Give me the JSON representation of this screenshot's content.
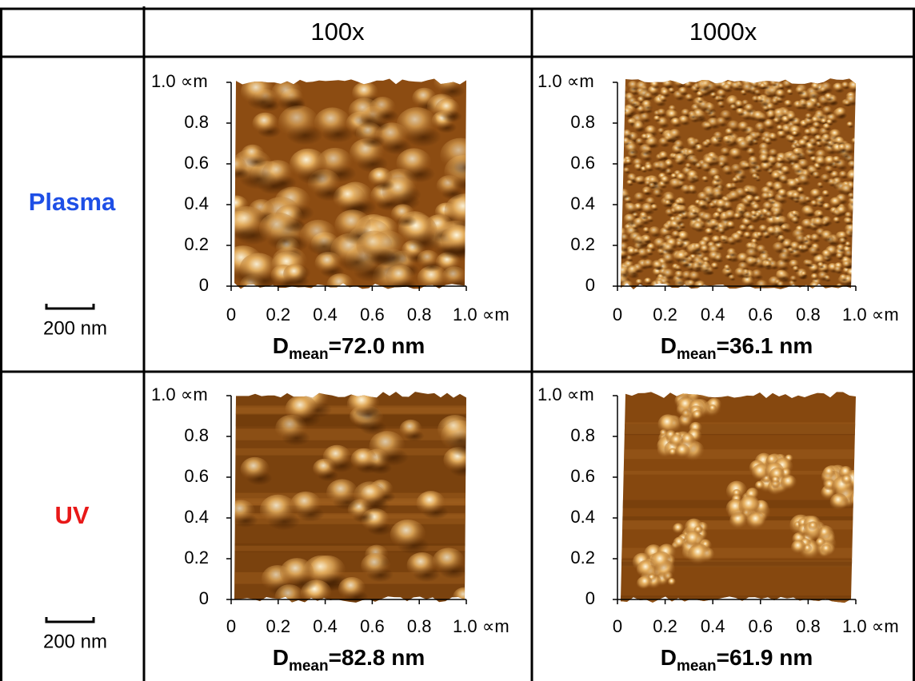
{
  "header": {
    "columns": [
      "100x",
      "1000x"
    ]
  },
  "rows": [
    {
      "label": "Plasma",
      "scale_bar": "200 nm",
      "cells": [
        {
          "y_ticks": [
            "1.0 ∝m",
            "0.8",
            "0.6",
            "0.4",
            "0.2",
            "0"
          ],
          "x_ticks": [
            "0",
            "0.2",
            "0.4",
            "0.6",
            "0.8",
            "1.0 ∝m"
          ],
          "caption": {
            "symbol": "D",
            "subscript": "mean",
            "value": "=72.0 nm"
          }
        },
        {
          "y_ticks": [
            "1.0 ∝m",
            "0.8",
            "0.6",
            "0.4",
            "0.2",
            "0"
          ],
          "x_ticks": [
            "0",
            "0.2",
            "0.4",
            "0.6",
            "0.8",
            "1.0 ∝m"
          ],
          "caption": {
            "symbol": "D",
            "subscript": "mean",
            "value": "=36.1 nm"
          }
        }
      ]
    },
    {
      "label": "UV",
      "scale_bar": "200 nm",
      "cells": [
        {
          "y_ticks": [
            "1.0 ∝m",
            "0.8",
            "0.6",
            "0.4",
            "0.2",
            "0"
          ],
          "x_ticks": [
            "0",
            "0.2",
            "0.4",
            "0.6",
            "0.8",
            "1.0 ∝m"
          ],
          "caption": {
            "symbol": "D",
            "subscript": "mean",
            "value": "=82.8 nm"
          }
        },
        {
          "y_ticks": [
            "1.0 ∝m",
            "0.8",
            "0.6",
            "0.4",
            "0.2",
            "0"
          ],
          "x_ticks": [
            "0",
            "0.2",
            "0.4",
            "0.6",
            "0.8",
            "1.0 ∝m"
          ],
          "caption": {
            "symbol": "D",
            "subscript": "mean",
            "value": "=61.9 nm"
          }
        }
      ]
    }
  ]
}
